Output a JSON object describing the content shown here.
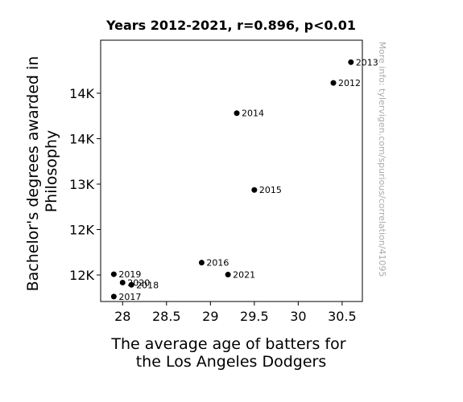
{
  "chart_data": {
    "type": "scatter",
    "title": "Years 2012-2021, r=0.896, p<0.01",
    "xlabel": [
      "The average age of batters for",
      "the Los Angeles Dodgers"
    ],
    "ylabel": [
      "Bachelor's degrees awarded in",
      "Philosophy"
    ],
    "xlim": [
      27.75,
      30.73
    ],
    "ylim": [
      11350,
      14800
    ],
    "xticks": [
      {
        "value": 28,
        "label": "28"
      },
      {
        "value": 28.5,
        "label": "28.5"
      },
      {
        "value": 29,
        "label": "29"
      },
      {
        "value": 29.5,
        "label": "29.5"
      },
      {
        "value": 30,
        "label": "30"
      },
      {
        "value": 30.5,
        "label": "30.5"
      }
    ],
    "yticks": [
      {
        "value": 11700,
        "label": "12K"
      },
      {
        "value": 12300,
        "label": "12K"
      },
      {
        "value": 12900,
        "label": "13K"
      },
      {
        "value": 13500,
        "label": "14K"
      },
      {
        "value": 14100,
        "label": "14K"
      }
    ],
    "points": [
      {
        "label": "2012",
        "x": 30.4,
        "y": 14236
      },
      {
        "label": "2013",
        "x": 30.6,
        "y": 14510
      },
      {
        "label": "2014",
        "x": 29.3,
        "y": 13837
      },
      {
        "label": "2015",
        "x": 29.5,
        "y": 12823
      },
      {
        "label": "2016",
        "x": 28.9,
        "y": 11863
      },
      {
        "label": "2017",
        "x": 27.9,
        "y": 11415
      },
      {
        "label": "2018",
        "x": 28.1,
        "y": 11570
      },
      {
        "label": "2019",
        "x": 27.9,
        "y": 11710
      },
      {
        "label": "2020",
        "x": 28.0,
        "y": 11600
      },
      {
        "label": "2021",
        "x": 29.2,
        "y": 11705
      }
    ],
    "watermark": "More info: tylervigen.com/spurious/correlation/41095",
    "grid": false,
    "marker_color": "#000000"
  }
}
